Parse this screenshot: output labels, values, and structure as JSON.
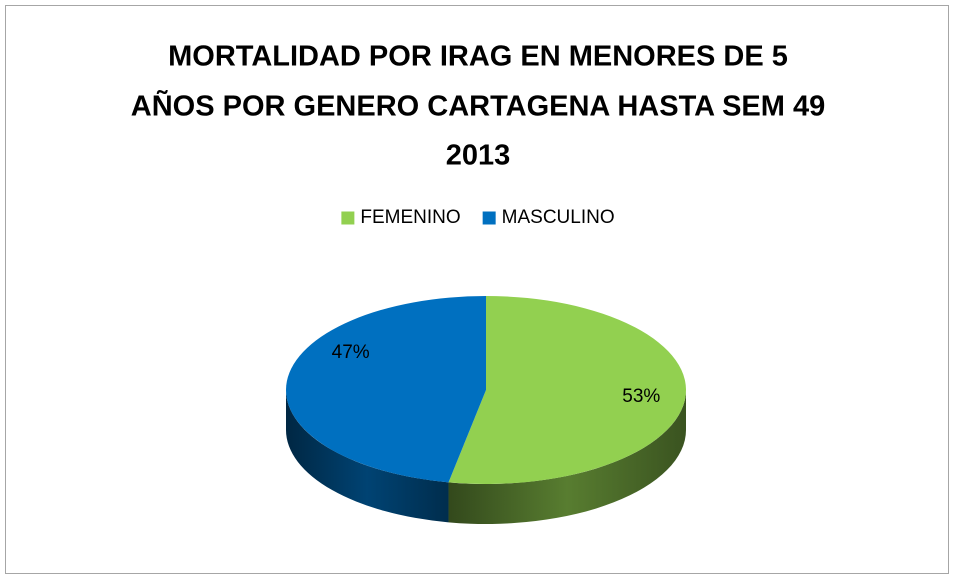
{
  "chart_data": {
    "type": "pie",
    "title": [
      "MORTALIDAD POR IRAG EN MENORES DE 5",
      "AÑOS POR GENERO CARTAGENA HASTA SEM 49",
      "2013"
    ],
    "categories": [
      "FEMENINO",
      "MASCULINO"
    ],
    "values": [
      53,
      47
    ],
    "value_labels": [
      "53%",
      "47%"
    ],
    "colors": [
      "#92d050",
      "#0070c0"
    ],
    "legend": "top"
  }
}
